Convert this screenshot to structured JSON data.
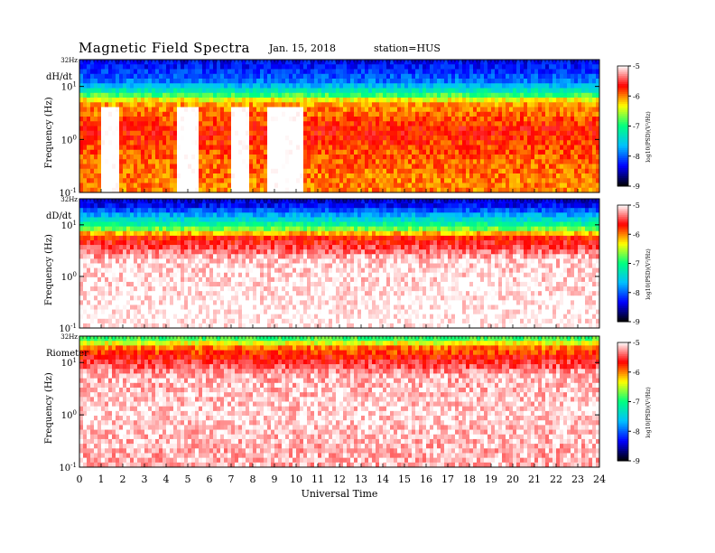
{
  "header": {
    "title": "Magnetic  Field  Spectra",
    "date": "Jan. 15, 2018",
    "station": "station=HUS"
  },
  "chart_data": {
    "type": "heatmap",
    "xlabel": "Universal Time",
    "x_ticks": [
      "0",
      "1",
      "2",
      "3",
      "4",
      "5",
      "6",
      "7",
      "8",
      "9",
      "10",
      "11",
      "12",
      "13",
      "14",
      "15",
      "16",
      "17",
      "18",
      "19",
      "20",
      "21",
      "22",
      "23",
      "24"
    ],
    "xlim": [
      0,
      24
    ],
    "colorbar": {
      "label": "log10(PSD)(V²/Hz)",
      "ticks": [
        "-5",
        "-6",
        "-7",
        "-8",
        "-9"
      ],
      "range": [
        -9,
        -5
      ],
      "colormap": [
        "#000000",
        "#0000ff",
        "#00c0ff",
        "#00ff80",
        "#ffff00",
        "#ff0000",
        "#ffffff"
      ]
    },
    "panels": [
      {
        "label": "dH/dt",
        "ylabel": "Frequency  (Hz)",
        "ylim_hz": [
          0.1,
          32
        ],
        "y_ticks": [
          {
            "base": "10",
            "exp": "-1",
            "value": 0.1
          },
          {
            "base": "10",
            "exp": "0",
            "value": 1
          },
          {
            "base": "10",
            "exp": "1",
            "value": 10
          }
        ],
        "top_tick": "32Hz",
        "summary_log10_psd": [
          {
            "f_hz": 25,
            "level": -8.3
          },
          {
            "f_hz": 12,
            "level": -7.9
          },
          {
            "f_hz": 8,
            "level": -7.2
          },
          {
            "f_hz": 5,
            "level": -6.1
          },
          {
            "f_hz": 1.5,
            "level": -5.7
          },
          {
            "f_hz": 0.5,
            "level": -5.9
          },
          {
            "f_hz": 0.15,
            "level": -6.0
          }
        ],
        "quiet_intervals_ut": [
          [
            1.0,
            1.8
          ],
          [
            4.5,
            5.5
          ],
          [
            7.0,
            7.8
          ],
          [
            8.6,
            10.3
          ]
        ]
      },
      {
        "label": "dD/dt",
        "ylabel": "Frequency  (Hz)",
        "ylim_hz": [
          0.1,
          32
        ],
        "y_ticks": [
          {
            "base": "10",
            "exp": "-1",
            "value": 0.1
          },
          {
            "base": "10",
            "exp": "0",
            "value": 1
          },
          {
            "base": "10",
            "exp": "1",
            "value": 10
          }
        ],
        "top_tick": "32Hz",
        "summary_log10_psd": [
          {
            "f_hz": 25,
            "level": -8.4
          },
          {
            "f_hz": 14,
            "level": -7.6
          },
          {
            "f_hz": 9,
            "level": -6.9
          },
          {
            "f_hz": 6,
            "level": -5.8
          },
          {
            "f_hz": 2,
            "level": -5.1
          },
          {
            "f_hz": 0.2,
            "level": -5.0
          }
        ],
        "quiet_intervals_ut": []
      },
      {
        "label": "Riometer",
        "ylabel": "Frequency  (Hz)",
        "ylim_hz": [
          0.1,
          32
        ],
        "y_ticks": [
          {
            "base": "10",
            "exp": "-1",
            "value": 0.1
          },
          {
            "base": "10",
            "exp": "0",
            "value": 1
          },
          {
            "base": "10",
            "exp": "1",
            "value": 10
          }
        ],
        "top_tick": "32Hz",
        "summary_log10_psd": [
          {
            "f_hz": 28,
            "level": -6.8
          },
          {
            "f_hz": 20,
            "level": -6.0
          },
          {
            "f_hz": 13,
            "level": -5.7
          },
          {
            "f_hz": 6,
            "level": -5.2
          },
          {
            "f_hz": 1,
            "level": -5.1
          },
          {
            "f_hz": 0.2,
            "level": -5.2
          }
        ],
        "quiet_intervals_ut": []
      }
    ]
  }
}
